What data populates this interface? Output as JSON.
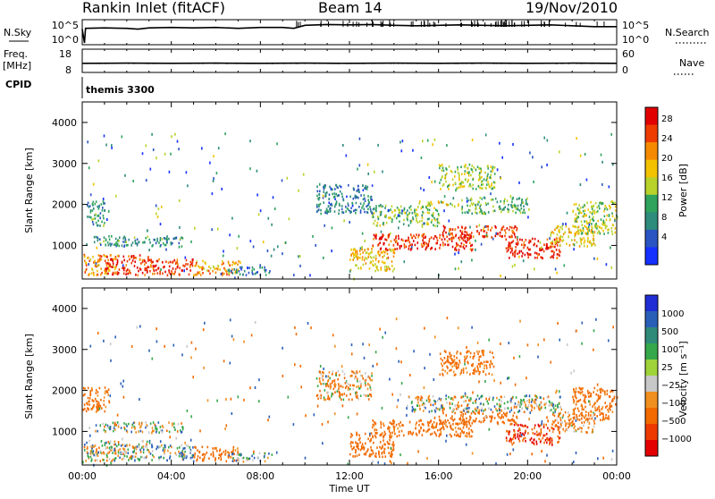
{
  "header": {
    "station": "Rankin Inlet (fitACF)",
    "beam": "Beam 14",
    "date": "19/Nov/2010"
  },
  "cpid": {
    "label": "CPID",
    "value": "themis 3300"
  },
  "colors": {
    "power": [
      "#1530ff",
      "#2a54c2",
      "#2e8c7d",
      "#2fa35c",
      "#b9d22a",
      "#f2c200",
      "#f58a00",
      "#ee3b00",
      "#e10000"
    ],
    "velocity": [
      "#1f2fd4",
      "#2a5fb8",
      "#2f8a7a",
      "#34a84a",
      "#9ed33a",
      "#c8c8c8",
      "#f09020",
      "#f26a00",
      "#ee3a00",
      "#e40000"
    ]
  },
  "chart_data": [
    {
      "type": "line",
      "name": "nsky-panel",
      "ylabel": "N.Sky",
      "ylabel_right": "N.Search",
      "y_tick_labels": [
        "10^5",
        "10^0"
      ],
      "y_tick_labels_right": [
        "10^5",
        "10^0"
      ],
      "scale": "log",
      "xlim": [
        0,
        24
      ],
      "series": [
        {
          "values": [
            [
              0.0,
              3.2
            ],
            [
              0.1,
              0.0
            ],
            [
              0.15,
              3.4
            ],
            [
              1.0,
              3.5
            ],
            [
              2.0,
              3.4
            ],
            [
              2.5,
              3.2
            ],
            [
              3.0,
              3.5
            ],
            [
              4.0,
              3.6
            ],
            [
              5.0,
              3.5
            ],
            [
              6.0,
              3.6
            ],
            [
              7.0,
              3.4
            ],
            [
              8.0,
              3.6
            ],
            [
              9.0,
              3.6
            ],
            [
              9.5,
              3.4
            ],
            [
              10.0,
              4.1
            ],
            [
              11.0,
              4.3
            ],
            [
              12.0,
              4.2
            ],
            [
              13.0,
              4.3
            ],
            [
              14.0,
              4.1
            ],
            [
              15.0,
              4.0
            ],
            [
              16.0,
              4.1
            ],
            [
              17.0,
              4.2
            ],
            [
              18.0,
              4.1
            ],
            [
              19.0,
              4.0
            ],
            [
              20.0,
              4.1
            ],
            [
              21.0,
              4.2
            ],
            [
              22.0,
              4.0
            ],
            [
              23.0,
              3.8
            ],
            [
              24.0,
              3.8
            ]
          ]
        }
      ]
    },
    {
      "type": "line",
      "name": "freq-panel",
      "ylabel": "Freq.",
      "ylabel_unit": "[MHz]",
      "ylabel_right": "Nave",
      "y_ticks": [
        18,
        8
      ],
      "y_ticks_right": [
        60,
        0
      ],
      "ylim": [
        8,
        18
      ],
      "xlim": [
        0,
        24
      ],
      "series": [
        {
          "values": [
            [
              0.0,
              12.0
            ],
            [
              2.0,
              12.1
            ],
            [
              4.0,
              12.0
            ],
            [
              6.0,
              12.1
            ],
            [
              8.0,
              12.0
            ],
            [
              10.0,
              12.1
            ],
            [
              12.0,
              12.0
            ],
            [
              14.0,
              12.1
            ],
            [
              16.0,
              12.0
            ],
            [
              18.0,
              12.1
            ],
            [
              20.0,
              12.0
            ],
            [
              22.0,
              12.1
            ],
            [
              24.0,
              12.0
            ]
          ]
        }
      ]
    },
    {
      "type": "heatmap",
      "name": "power-panel",
      "ylabel": "Slant Range [km]",
      "colorbar_label": "Power [dB]",
      "colorbar_ticks": [
        28,
        24,
        20,
        16,
        12,
        8,
        4
      ],
      "clim": [
        0,
        32
      ],
      "y_ticks": [
        1000,
        2000,
        3000,
        4000
      ],
      "ylim": [
        180,
        4500
      ],
      "xlim": [
        0,
        24
      ],
      "scatter": [
        {
          "x": [
            0.0,
            1.5
          ],
          "y": [
            300,
            800
          ],
          "v": 22
        },
        {
          "x": [
            0.2,
            1.0
          ],
          "y": [
            1500,
            2100
          ],
          "v": 10
        },
        {
          "x": [
            1.0,
            3.0
          ],
          "y": [
            300,
            800
          ],
          "v": 28
        },
        {
          "x": [
            3.0,
            5.0
          ],
          "y": [
            300,
            700
          ],
          "v": 27
        },
        {
          "x": [
            5.0,
            7.0
          ],
          "y": [
            300,
            650
          ],
          "v": 22
        },
        {
          "x": [
            0.5,
            4.5
          ],
          "y": [
            1000,
            1250
          ],
          "v": 10
        },
        {
          "x": [
            6.5,
            8.5
          ],
          "y": [
            300,
            500
          ],
          "v": 8
        },
        {
          "x": [
            12.0,
            14.0
          ],
          "y": [
            400,
            1000
          ],
          "v": 20
        },
        {
          "x": [
            13.0,
            17.5
          ],
          "y": [
            900,
            1300
          ],
          "v": 28
        },
        {
          "x": [
            13.0,
            16.0
          ],
          "y": [
            1500,
            2000
          ],
          "v": 14
        },
        {
          "x": [
            16.0,
            19.5
          ],
          "y": [
            1200,
            1500
          ],
          "v": 28
        },
        {
          "x": [
            19.0,
            21.5
          ],
          "y": [
            700,
            1200
          ],
          "v": 29
        },
        {
          "x": [
            21.0,
            23.0
          ],
          "y": [
            1000,
            1500
          ],
          "v": 20
        },
        {
          "x": [
            22.0,
            24.0
          ],
          "y": [
            1300,
            2100
          ],
          "v": 16
        },
        {
          "x": [
            16.0,
            18.5
          ],
          "y": [
            2400,
            3000
          ],
          "v": 16
        },
        {
          "x": [
            15.0,
            17.0
          ],
          "y": [
            2000,
            2100
          ],
          "v": 18
        },
        {
          "x": [
            10.5,
            13.0
          ],
          "y": [
            1800,
            2500
          ],
          "v": 8
        },
        {
          "x": [
            17.0,
            20.0
          ],
          "y": [
            1800,
            2200
          ],
          "v": 12
        }
      ]
    },
    {
      "type": "heatmap",
      "name": "velocity-panel",
      "ylabel": "Slant Range [km]",
      "colorbar_label": "Velocity [m s⁻¹]",
      "colorbar_ticks": [
        "1000",
        "500",
        "100",
        "25",
        "−25",
        "−100",
        "−500",
        "−1000"
      ],
      "clim": [
        -1000,
        1000
      ],
      "y_ticks": [
        1000,
        2000,
        3000,
        4000
      ],
      "ylim": [
        180,
        4500
      ],
      "xlim": [
        0,
        24
      ],
      "scatter": [
        {
          "x": [
            0.0,
            1.5
          ],
          "y": [
            300,
            800
          ],
          "v": 0
        },
        {
          "x": [
            0.0,
            1.2
          ],
          "y": [
            1500,
            2100
          ],
          "v": -200
        },
        {
          "x": [
            1.0,
            3.0
          ],
          "y": [
            300,
            800
          ],
          "v": 0
        },
        {
          "x": [
            3.0,
            5.0
          ],
          "y": [
            300,
            700
          ],
          "v": 60
        },
        {
          "x": [
            5.0,
            7.0
          ],
          "y": [
            300,
            650
          ],
          "v": -200
        },
        {
          "x": [
            0.5,
            4.5
          ],
          "y": [
            1000,
            1250
          ],
          "v": 0
        },
        {
          "x": [
            6.5,
            8.5
          ],
          "y": [
            300,
            500
          ],
          "v": 100
        },
        {
          "x": [
            12.0,
            14.0
          ],
          "y": [
            400,
            1000
          ],
          "v": -300
        },
        {
          "x": [
            13.0,
            17.5
          ],
          "y": [
            900,
            1300
          ],
          "v": -200
        },
        {
          "x": [
            14.5,
            21.5
          ],
          "y": [
            1500,
            1900
          ],
          "v": 0
        },
        {
          "x": [
            16.0,
            19.5
          ],
          "y": [
            1200,
            1500
          ],
          "v": -300
        },
        {
          "x": [
            19.0,
            21.5
          ],
          "y": [
            700,
            1200
          ],
          "v": -500
        },
        {
          "x": [
            21.0,
            23.0
          ],
          "y": [
            1000,
            1500
          ],
          "v": -100
        },
        {
          "x": [
            22.0,
            24.0
          ],
          "y": [
            1300,
            2100
          ],
          "v": -200
        },
        {
          "x": [
            16.0,
            18.5
          ],
          "y": [
            2400,
            3000
          ],
          "v": -200
        },
        {
          "x": [
            10.5,
            13.0
          ],
          "y": [
            1800,
            2500
          ],
          "v": -100
        }
      ]
    }
  ],
  "xaxis": {
    "label": "Time UT",
    "tick_labels": [
      "00:00",
      "04:00",
      "08:00",
      "12:00",
      "16:00",
      "20:00",
      "00:00"
    ],
    "tick_values": [
      0,
      4,
      8,
      12,
      16,
      20,
      24
    ],
    "xlim": [
      0,
      24
    ]
  }
}
